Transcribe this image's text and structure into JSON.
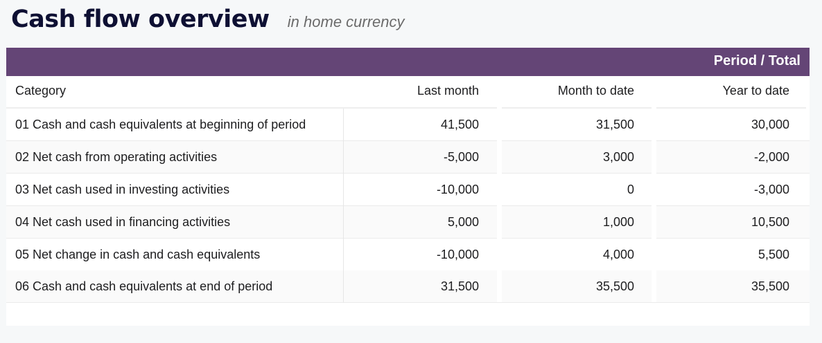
{
  "header": {
    "title": "Cash flow overview",
    "subtitle": "in home currency"
  },
  "table": {
    "group_label": "Period / Total",
    "columns": [
      "Category",
      "Last month",
      "Month to date",
      "Year to date"
    ],
    "rows": [
      {
        "category": "01 Cash and cash equivalents at beginning of period",
        "last_month": "41,500",
        "month_to_date": "31,500",
        "year_to_date": "30,000"
      },
      {
        "category": "02 Net cash from operating activities",
        "last_month": "-5,000",
        "month_to_date": "3,000",
        "year_to_date": "-2,000"
      },
      {
        "category": "03 Net cash used in investing activities",
        "last_month": "-10,000",
        "month_to_date": "0",
        "year_to_date": "-3,000"
      },
      {
        "category": "04 Net cash used in financing activities",
        "last_month": "5,000",
        "month_to_date": "1,000",
        "year_to_date": "10,500"
      },
      {
        "category": "05 Net change in cash and cash equivalents",
        "last_month": "-10,000",
        "month_to_date": "4,000",
        "year_to_date": "5,500"
      },
      {
        "category": "06 Cash and cash equivalents at end of period",
        "last_month": "31,500",
        "month_to_date": "35,500",
        "year_to_date": "35,500"
      }
    ]
  },
  "colors": {
    "band": "#644576",
    "title": "#0e1033"
  }
}
